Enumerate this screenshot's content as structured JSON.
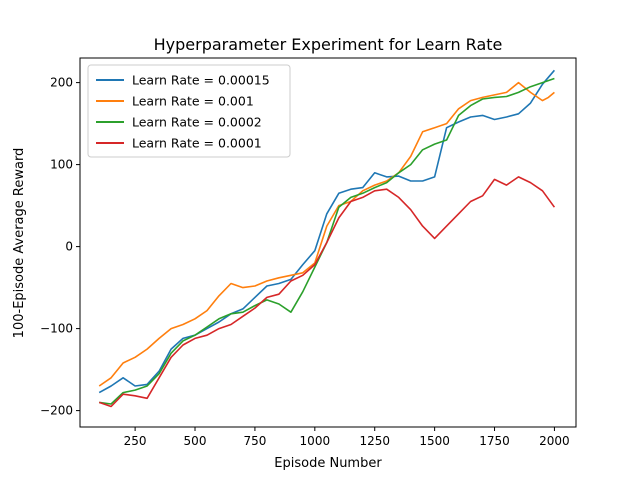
{
  "chart_data": {
    "type": "line",
    "title": "Hyperparameter Experiment for Learn Rate",
    "xlabel": "Episode Number",
    "ylabel": "100-Episode Average Reward",
    "xlim": [
      20,
      2090
    ],
    "ylim": [
      -220,
      230
    ],
    "xticks": [
      250,
      500,
      750,
      1000,
      1250,
      1500,
      1750,
      2000
    ],
    "yticks": [
      -200,
      -100,
      0,
      100,
      200
    ],
    "grid": false,
    "legend_position": "top-left",
    "series": [
      {
        "name": "Learn Rate = 0.00015",
        "color": "#1f77b4",
        "x": [
          100,
          150,
          200,
          250,
          300,
          350,
          400,
          450,
          500,
          550,
          600,
          650,
          700,
          750,
          800,
          850,
          900,
          950,
          1000,
          1050,
          1100,
          1150,
          1200,
          1250,
          1300,
          1350,
          1400,
          1450,
          1500,
          1550,
          1600,
          1650,
          1700,
          1750,
          1800,
          1850,
          1900,
          1950,
          2000
        ],
        "y": [
          -178,
          -170,
          -160,
          -170,
          -168,
          -152,
          -125,
          -112,
          -108,
          -100,
          -92,
          -82,
          -76,
          -62,
          -48,
          -45,
          -40,
          -22,
          -5,
          40,
          65,
          70,
          72,
          90,
          85,
          86,
          80,
          80,
          85,
          145,
          152,
          158,
          160,
          155,
          158,
          162,
          175,
          198,
          215
        ]
      },
      {
        "name": "Learn Rate = 0.001",
        "color": "#ff7f0e",
        "x": [
          100,
          150,
          200,
          250,
          300,
          350,
          400,
          450,
          500,
          550,
          600,
          650,
          700,
          750,
          800,
          850,
          900,
          950,
          1000,
          1050,
          1100,
          1150,
          1200,
          1250,
          1300,
          1350,
          1400,
          1450,
          1500,
          1550,
          1600,
          1650,
          1700,
          1750,
          1800,
          1850,
          1900,
          1950,
          1975,
          2000
        ],
        "y": [
          -170,
          -160,
          -142,
          -135,
          -125,
          -112,
          -100,
          -95,
          -88,
          -78,
          -60,
          -45,
          -50,
          -48,
          -42,
          -38,
          -35,
          -32,
          -20,
          25,
          50,
          55,
          68,
          75,
          80,
          90,
          110,
          140,
          145,
          150,
          168,
          178,
          182,
          185,
          188,
          200,
          188,
          178,
          182,
          188
        ]
      },
      {
        "name": "Learn Rate = 0.0002",
        "color": "#2ca02c",
        "x": [
          100,
          150,
          200,
          250,
          300,
          350,
          400,
          450,
          500,
          550,
          600,
          650,
          700,
          750,
          800,
          850,
          900,
          950,
          1000,
          1050,
          1100,
          1150,
          1200,
          1250,
          1300,
          1350,
          1400,
          1450,
          1500,
          1550,
          1600,
          1650,
          1700,
          1750,
          1800,
          1850,
          1900,
          1950,
          2000
        ],
        "y": [
          -190,
          -192,
          -178,
          -175,
          -170,
          -155,
          -130,
          -115,
          -108,
          -98,
          -88,
          -82,
          -80,
          -72,
          -65,
          -70,
          -80,
          -55,
          -25,
          5,
          48,
          60,
          65,
          72,
          78,
          90,
          100,
          118,
          125,
          130,
          160,
          172,
          180,
          182,
          183,
          188,
          195,
          200,
          205
        ]
      },
      {
        "name": "Learn Rate = 0.0001",
        "color": "#d62728",
        "x": [
          100,
          150,
          200,
          250,
          300,
          350,
          400,
          450,
          500,
          550,
          600,
          650,
          700,
          750,
          800,
          850,
          900,
          950,
          1000,
          1050,
          1100,
          1150,
          1200,
          1250,
          1300,
          1350,
          1400,
          1450,
          1500,
          1550,
          1600,
          1650,
          1700,
          1750,
          1800,
          1850,
          1900,
          1950,
          2000
        ],
        "y": [
          -190,
          -195,
          -180,
          -182,
          -185,
          -160,
          -135,
          -120,
          -112,
          -108,
          -100,
          -95,
          -85,
          -75,
          -62,
          -58,
          -42,
          -35,
          -22,
          5,
          35,
          55,
          60,
          68,
          70,
          60,
          45,
          25,
          10,
          25,
          40,
          55,
          62,
          82,
          75,
          85,
          78,
          68,
          48
        ]
      }
    ]
  }
}
